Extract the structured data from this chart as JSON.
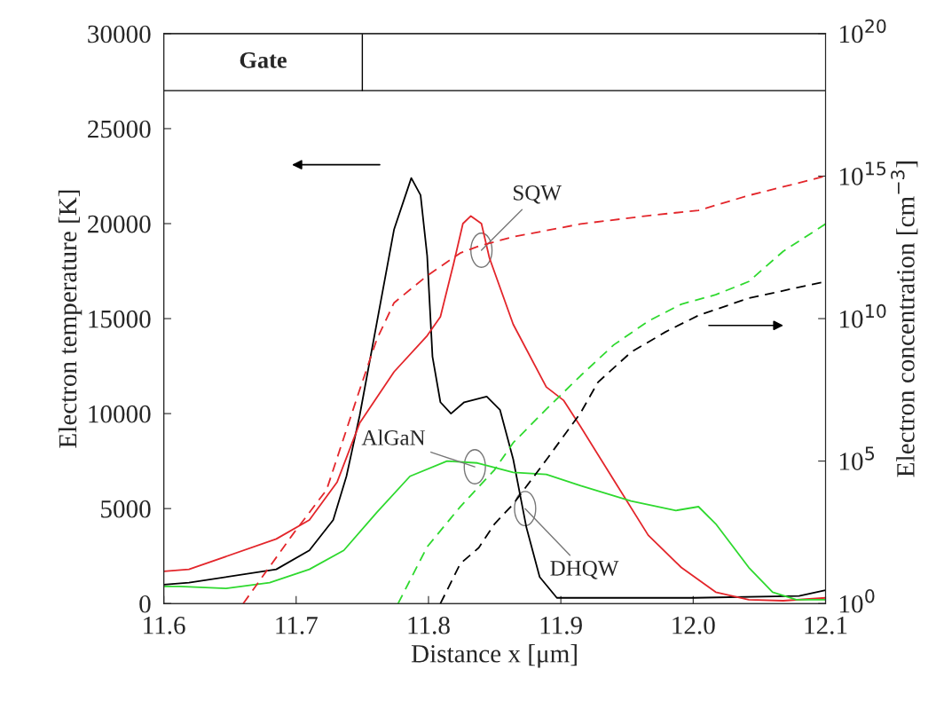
{
  "chart_data": {
    "type": "line",
    "xlabel": "Distance x [μm]",
    "ylabel": "Electron temperature [K]",
    "y2label": "Electron concentration [cm$^{−3}$]",
    "xlim": [
      11.6,
      12.1
    ],
    "xticks": [
      11.6,
      11.7,
      11.8,
      11.9,
      {
        "value": 12,
        "label": "12.0"
      },
      12.1
    ],
    "ylim": [
      0,
      30000
    ],
    "yticks": [
      0,
      5000,
      10000,
      15000,
      20000,
      25000,
      30000
    ],
    "log": "y2",
    "y2lim": [
      1,
      1e+20
    ],
    "y2ticks": [
      {
        "value": 1,
        "label": "10$^{0}$"
      },
      {
        "value": 100000.0,
        "label": "10$^{5}$"
      },
      {
        "value": 10000000000.0,
        "label": "10$^{10}$"
      },
      {
        "value": 1000000000000000.0,
        "label": "10$^{15}$"
      },
      {
        "value": 1e+20,
        "label": "10$^{20}$"
      }
    ],
    "grid": false,
    "legend": false,
    "marker": "none",
    "series": [
      {
        "color": "#000000",
        "line_style": "solid",
        "x": [
          11.6,
          11.619,
          11.685,
          11.71,
          11.728,
          11.738,
          11.748,
          11.761,
          11.774,
          11.787,
          11.794,
          11.799,
          11.803,
          11.809,
          11.817,
          11.827,
          11.844,
          11.854,
          11.864,
          11.874,
          11.884,
          11.897,
          11.915,
          12.0,
          12.08,
          12.1
        ],
        "values": [
          1000,
          1100,
          1800,
          2800,
          4400,
          6700,
          9900,
          14800,
          19700,
          22400,
          21500,
          18300,
          13000,
          10600,
          10000,
          10600,
          10900,
          10200,
          7600,
          4000,
          1400,
          300,
          300,
          300,
          400,
          700
        ]
      },
      {
        "color": "#e3262b",
        "line_style": "solid",
        "x": [
          11.6,
          11.619,
          11.685,
          11.71,
          11.731,
          11.748,
          11.774,
          11.799,
          11.809,
          11.819,
          11.826,
          11.832,
          11.84,
          11.846,
          11.864,
          11.889,
          11.902,
          11.915,
          11.94,
          11.966,
          11.991,
          12.017,
          12.042,
          12.068,
          12.1
        ],
        "values": [
          1700,
          1800,
          3400,
          4400,
          6400,
          9500,
          12200,
          14100,
          15100,
          17900,
          20000,
          20400,
          20000,
          18200,
          14700,
          11400,
          10700,
          9300,
          6500,
          3600,
          1900,
          600,
          200,
          150,
          300
        ]
      },
      {
        "color": "#2fd92f",
        "line_style": "solid",
        "x": [
          11.6,
          11.612,
          11.647,
          11.68,
          11.71,
          11.736,
          11.761,
          11.786,
          11.814,
          11.837,
          11.864,
          11.889,
          11.915,
          11.953,
          11.987,
          12.004,
          12.017,
          12.042,
          12.06,
          12.078,
          12.1
        ],
        "values": [
          900,
          900,
          800,
          1100,
          1800,
          2800,
          4800,
          6700,
          7500,
          7400,
          6900,
          6800,
          6200,
          5400,
          4900,
          5100,
          4200,
          1900,
          600,
          200,
          200
        ]
      },
      {
        "color": "#e3262b",
        "line_style": "dashed",
        "axis": "y2",
        "x": [
          11.66,
          11.698,
          11.723,
          11.748,
          11.761,
          11.774,
          11.799,
          11.824,
          11.838,
          11.864,
          11.915,
          11.966,
          12.004,
          12.042,
          12.1
        ],
        "values": [
          1,
          290,
          9800,
          32000000.0,
          1900000000.0,
          36000000000.0,
          320000000000.0,
          2000000000000.0,
          3500000000000.0,
          7400000000000.0,
          21000000000000.0,
          41000000000000.0,
          63000000000000.0,
          210000000000000.0,
          1000000000000000.0
        ]
      },
      {
        "color": "#2fd92f",
        "line_style": "dashed",
        "axis": "y2",
        "x": [
          11.777,
          11.799,
          11.824,
          11.85,
          11.864,
          11.889,
          11.915,
          11.94,
          11.966,
          11.991,
          12.017,
          12.042,
          12.068,
          12.1
        ],
        "values": [
          1,
          98,
          2500,
          50000.0,
          440000.0,
          6600000.0,
          100000000.0,
          1200000000.0,
          8100000000.0,
          32000000000.0,
          69000000000.0,
          200000000000.0,
          2300000000000.0,
          21000000000000.0
        ]
      },
      {
        "color": "#000000",
        "line_style": "dashed",
        "axis": "y2",
        "x": [
          11.809,
          11.824,
          11.838,
          11.85,
          11.864,
          11.889,
          11.915,
          11.928,
          11.953,
          11.979,
          12.004,
          12.042,
          12.1
        ],
        "values": [
          1,
          25,
          91,
          630,
          3100,
          110000.0,
          5000000.0,
          58000000.0,
          660000000.0,
          3400000000.0,
          13000000000.0,
          52000000000.0,
          200000000000.0
        ]
      }
    ],
    "ref_lines": [
      {
        "axis": "y",
        "value": 27000,
        "color": "#000000",
        "line_style": "solid"
      }
    ],
    "annotations": [
      "Gate",
      {
        "text": "SQW",
        "x": 11.84,
        "y": 18600
      },
      {
        "text": "AlGaN",
        "x": 11.835,
        "y": 7200
      },
      {
        "text": "DHQW",
        "x": 11.873,
        "y": 5000
      }
    ]
  }
}
